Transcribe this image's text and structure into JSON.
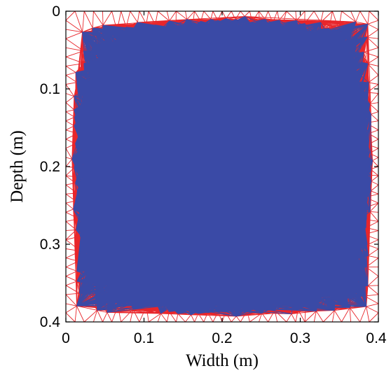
{
  "chart_data": {
    "type": "mesh",
    "xlabel": "Width (m)",
    "ylabel": "Depth (m)",
    "xlim": [
      0,
      0.4
    ],
    "ylim": [
      0,
      0.4
    ],
    "y_axis_inverted": true,
    "x_ticks": [
      "0",
      "0.1",
      "0.2",
      "0.3",
      "0.4"
    ],
    "y_ticks": [
      "0",
      "0.1",
      "0.2",
      "0.3",
      "0.4"
    ],
    "grid": false,
    "legend": "none",
    "regions": [
      {
        "region": "outer",
        "color": "#e8262b",
        "shape": "square domain minus inclusion",
        "extent_x": [
          0,
          0.4
        ],
        "extent_y": [
          0,
          0.4
        ]
      },
      {
        "region": "inclusion",
        "color": "#3a4aa6",
        "shape": "circle",
        "center": [
          0.2,
          0.2
        ],
        "radius": 0.16
      }
    ]
  }
}
